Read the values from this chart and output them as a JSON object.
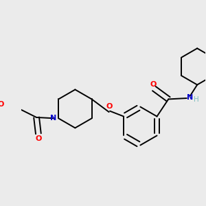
{
  "bg_color": "#ebebeb",
  "bond_color": "#000000",
  "atom_colors": {
    "O": "#ff0000",
    "N": "#0000cc",
    "H": "#7fbfbf",
    "C": "#000000"
  },
  "line_width": 1.4,
  "figsize": [
    3.0,
    3.0
  ],
  "dpi": 100
}
